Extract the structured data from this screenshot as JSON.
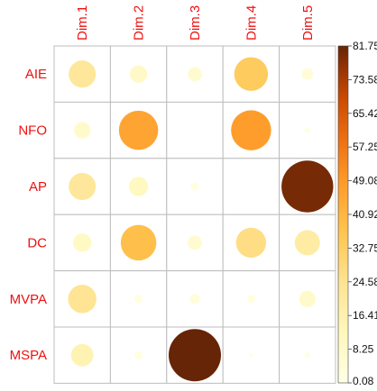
{
  "chart_data": {
    "type": "heatmap",
    "columns": [
      "Dim.1",
      "Dim.2",
      "Dim.3",
      "Dim.4",
      "Dim.5"
    ],
    "rows": [
      "AIE",
      "NFO",
      "AP",
      "DC",
      "MVPA",
      "MSPA"
    ],
    "values": [
      [
        22,
        9,
        6,
        34,
        4
      ],
      [
        8,
        46,
        0.08,
        48,
        1
      ],
      [
        22,
        11,
        2,
        0.08,
        80
      ],
      [
        10,
        38,
        6,
        27,
        19
      ],
      [
        24,
        2,
        3,
        2,
        8
      ],
      [
        15,
        2,
        81.75,
        0.5,
        1
      ]
    ],
    "colorbar": {
      "ticks": [
        "81.75",
        "73.58",
        "65.42",
        "57.25",
        "49.08",
        "40.92",
        "32.75",
        "24.58",
        "16.41",
        "8.25",
        "0.08"
      ],
      "min": 0.08,
      "max": 81.75
    },
    "label_color": "#ee1111",
    "tick_color": "#111111",
    "grid_color": "#bdbdbd"
  }
}
